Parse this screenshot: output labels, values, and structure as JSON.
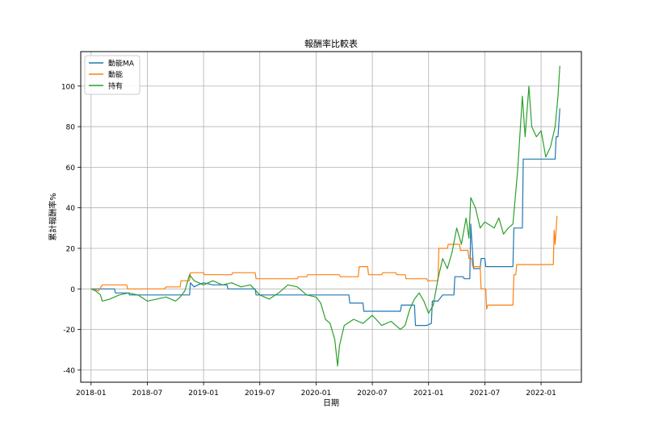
{
  "chart_data": {
    "type": "line",
    "title": "報酬率比較表",
    "xlabel": "日期",
    "ylabel": "累計報酬率%",
    "x_ticks": [
      "2018-01",
      "2018-07",
      "2019-01",
      "2019-07",
      "2020-01",
      "2020-07",
      "2021-01",
      "2021-07",
      "2022-01"
    ],
    "x_tick_positions_months": [
      0,
      6,
      12,
      18,
      24,
      30,
      36,
      42,
      48
    ],
    "xlim": [
      -1.1,
      52.3
    ],
    "y_ticks": [
      -40,
      -20,
      0,
      20,
      40,
      60,
      80,
      100
    ],
    "ylim": [
      -46,
      117
    ],
    "grid": true,
    "legend_position": "upper-left",
    "series": [
      {
        "name": "動能MA",
        "color": "#1f77b4",
        "points": [
          [
            0,
            0
          ],
          [
            2.5,
            0
          ],
          [
            2.6,
            -2
          ],
          [
            4,
            -2
          ],
          [
            4.1,
            -3
          ],
          [
            10.5,
            -3
          ],
          [
            10.6,
            3
          ],
          [
            11,
            1
          ],
          [
            11.4,
            2
          ],
          [
            12,
            3
          ],
          [
            13,
            2
          ],
          [
            14.5,
            2
          ],
          [
            14.6,
            0
          ],
          [
            17.5,
            0
          ],
          [
            17.6,
            -3
          ],
          [
            24,
            -3
          ],
          [
            27.5,
            -3
          ],
          [
            27.6,
            -7
          ],
          [
            29,
            -7
          ],
          [
            29.1,
            -11
          ],
          [
            33,
            -11
          ],
          [
            33.1,
            -8
          ],
          [
            34.5,
            -8
          ],
          [
            34.6,
            -18
          ],
          [
            35.8,
            -18
          ],
          [
            36.3,
            -17
          ],
          [
            36.4,
            -6
          ],
          [
            37,
            -6
          ],
          [
            37.5,
            -3
          ],
          [
            38,
            -3
          ],
          [
            38.7,
            -3
          ],
          [
            38.8,
            6
          ],
          [
            39.7,
            6
          ],
          [
            39.8,
            5
          ],
          [
            40.4,
            5
          ],
          [
            40.5,
            32
          ],
          [
            40.8,
            10
          ],
          [
            41.5,
            10
          ],
          [
            41.6,
            15
          ],
          [
            42,
            15
          ],
          [
            42.1,
            11
          ],
          [
            45,
            11
          ],
          [
            45.1,
            30
          ],
          [
            46,
            30
          ],
          [
            46.1,
            64
          ],
          [
            47.5,
            64
          ],
          [
            49.5,
            64
          ],
          [
            49.6,
            75
          ],
          [
            49.8,
            75
          ],
          [
            50,
            89
          ]
        ]
      },
      {
        "name": "動能",
        "color": "#ff7f0e",
        "points": [
          [
            0,
            0
          ],
          [
            0.8,
            -1
          ],
          [
            1.2,
            2
          ],
          [
            2,
            2
          ],
          [
            3.8,
            2
          ],
          [
            3.9,
            0
          ],
          [
            7.8,
            0
          ],
          [
            8,
            1
          ],
          [
            9.5,
            1
          ],
          [
            9.6,
            4
          ],
          [
            10.5,
            4
          ],
          [
            10.6,
            8
          ],
          [
            12,
            8
          ],
          [
            12.1,
            7
          ],
          [
            15,
            7
          ],
          [
            15.1,
            8
          ],
          [
            17.5,
            8
          ],
          [
            17.6,
            5
          ],
          [
            22,
            5
          ],
          [
            22.1,
            6
          ],
          [
            23,
            6
          ],
          [
            23.1,
            7
          ],
          [
            26.5,
            7
          ],
          [
            26.6,
            6
          ],
          [
            28.5,
            6
          ],
          [
            28.6,
            11
          ],
          [
            29.5,
            11
          ],
          [
            29.6,
            7
          ],
          [
            31,
            7
          ],
          [
            31.1,
            8
          ],
          [
            32.5,
            8
          ],
          [
            32.6,
            7
          ],
          [
            33.5,
            7
          ],
          [
            33.6,
            5
          ],
          [
            35.8,
            5
          ],
          [
            35.9,
            4
          ],
          [
            37,
            4
          ],
          [
            37.1,
            20
          ],
          [
            38,
            20
          ],
          [
            38.1,
            22
          ],
          [
            39.3,
            22
          ],
          [
            39.4,
            19
          ],
          [
            40.2,
            19
          ],
          [
            40.3,
            15
          ],
          [
            40.6,
            15
          ],
          [
            40.7,
            11
          ],
          [
            41.5,
            11
          ],
          [
            41.6,
            0
          ],
          [
            42.1,
            0
          ],
          [
            42.2,
            -10
          ],
          [
            42.3,
            -8
          ],
          [
            45,
            -8
          ],
          [
            45.1,
            7
          ],
          [
            45.3,
            7
          ],
          [
            45.4,
            12
          ],
          [
            49.3,
            12
          ],
          [
            49.4,
            29
          ],
          [
            49.5,
            22
          ],
          [
            49.7,
            36
          ]
        ]
      },
      {
        "name": "持有",
        "color": "#2ca02c",
        "points": [
          [
            0,
            0
          ],
          [
            0.5,
            -1
          ],
          [
            1,
            -3
          ],
          [
            1.2,
            -6
          ],
          [
            2,
            -5
          ],
          [
            3,
            -3
          ],
          [
            4,
            -2
          ],
          [
            5,
            -3
          ],
          [
            6,
            -6
          ],
          [
            7,
            -5
          ],
          [
            8,
            -4
          ],
          [
            9,
            -6
          ],
          [
            9.5,
            -4
          ],
          [
            10,
            -1
          ],
          [
            10.5,
            7
          ],
          [
            11,
            4
          ],
          [
            12,
            2
          ],
          [
            13,
            4
          ],
          [
            14,
            2
          ],
          [
            15,
            3
          ],
          [
            16,
            1
          ],
          [
            17,
            2
          ],
          [
            18,
            -3
          ],
          [
            19,
            -5
          ],
          [
            20,
            -2
          ],
          [
            21,
            2
          ],
          [
            22,
            1
          ],
          [
            23,
            -3
          ],
          [
            24,
            -4
          ],
          [
            24.5,
            -7
          ],
          [
            25,
            -15
          ],
          [
            25.5,
            -17
          ],
          [
            26,
            -25
          ],
          [
            26.3,
            -38
          ],
          [
            26.5,
            -28
          ],
          [
            27,
            -18
          ],
          [
            28,
            -15
          ],
          [
            29,
            -17
          ],
          [
            30,
            -13
          ],
          [
            31,
            -18
          ],
          [
            32,
            -16
          ],
          [
            33,
            -20
          ],
          [
            33.5,
            -18
          ],
          [
            34,
            -10
          ],
          [
            34.5,
            -5
          ],
          [
            35,
            -2
          ],
          [
            35.5,
            -6
          ],
          [
            36,
            -12
          ],
          [
            36.5,
            -8
          ],
          [
            37,
            5
          ],
          [
            37.5,
            15
          ],
          [
            38,
            10
          ],
          [
            38.5,
            18
          ],
          [
            39,
            30
          ],
          [
            39.5,
            22
          ],
          [
            40,
            35
          ],
          [
            40.3,
            25
          ],
          [
            40.5,
            45
          ],
          [
            41,
            40
          ],
          [
            41.5,
            30
          ],
          [
            42,
            33
          ],
          [
            43,
            30
          ],
          [
            43.5,
            35
          ],
          [
            44,
            27
          ],
          [
            44.5,
            30
          ],
          [
            45,
            32
          ],
          [
            45.5,
            58
          ],
          [
            46,
            95
          ],
          [
            46.3,
            75
          ],
          [
            46.7,
            100
          ],
          [
            47,
            80
          ],
          [
            47.5,
            75
          ],
          [
            48,
            78
          ],
          [
            48.5,
            65
          ],
          [
            49,
            70
          ],
          [
            49.5,
            80
          ],
          [
            49.8,
            95
          ],
          [
            50,
            110
          ]
        ]
      }
    ]
  }
}
